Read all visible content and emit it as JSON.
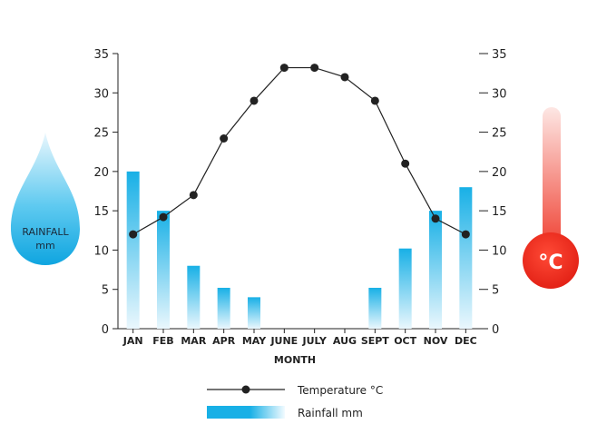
{
  "chart_data": {
    "type": "bar+line",
    "categories": [
      "JAN",
      "FEB",
      "MAR",
      "APR",
      "MAY",
      "JUNE",
      "JULY",
      "AUG",
      "SEPT",
      "OCT",
      "NOV",
      "DEC"
    ],
    "series": [
      {
        "name": "Temperature °C",
        "type": "line",
        "axis": "right",
        "values": [
          12,
          14.2,
          17,
          24.2,
          29,
          33.2,
          33.2,
          32,
          29,
          21,
          14,
          12
        ]
      },
      {
        "name": "Rainfall mm",
        "type": "bar",
        "axis": "left",
        "values": [
          20,
          15,
          8,
          5.2,
          4,
          0,
          0,
          0,
          5.2,
          10.2,
          15,
          18
        ]
      }
    ],
    "xlabel": "MONTH",
    "ylim": [
      0,
      35
    ],
    "yticks": [
      0,
      5,
      10,
      15,
      20,
      25,
      30,
      35
    ],
    "y2lim": [
      0,
      35
    ],
    "y2ticks": [
      0,
      5,
      10,
      15,
      20,
      25,
      30,
      35
    ],
    "grid": false,
    "legend_position": "bottom-center"
  },
  "decorations": {
    "rain_drop_label_1": "RAINFALL",
    "rain_drop_label_2": "mm",
    "thermometer_label": "°C",
    "rain_color": "#18b0e6",
    "temp_color": "#e8251c",
    "line_color": "#222222",
    "drop_icon": "water-drop-icon",
    "thermo_icon": "thermometer-icon"
  }
}
